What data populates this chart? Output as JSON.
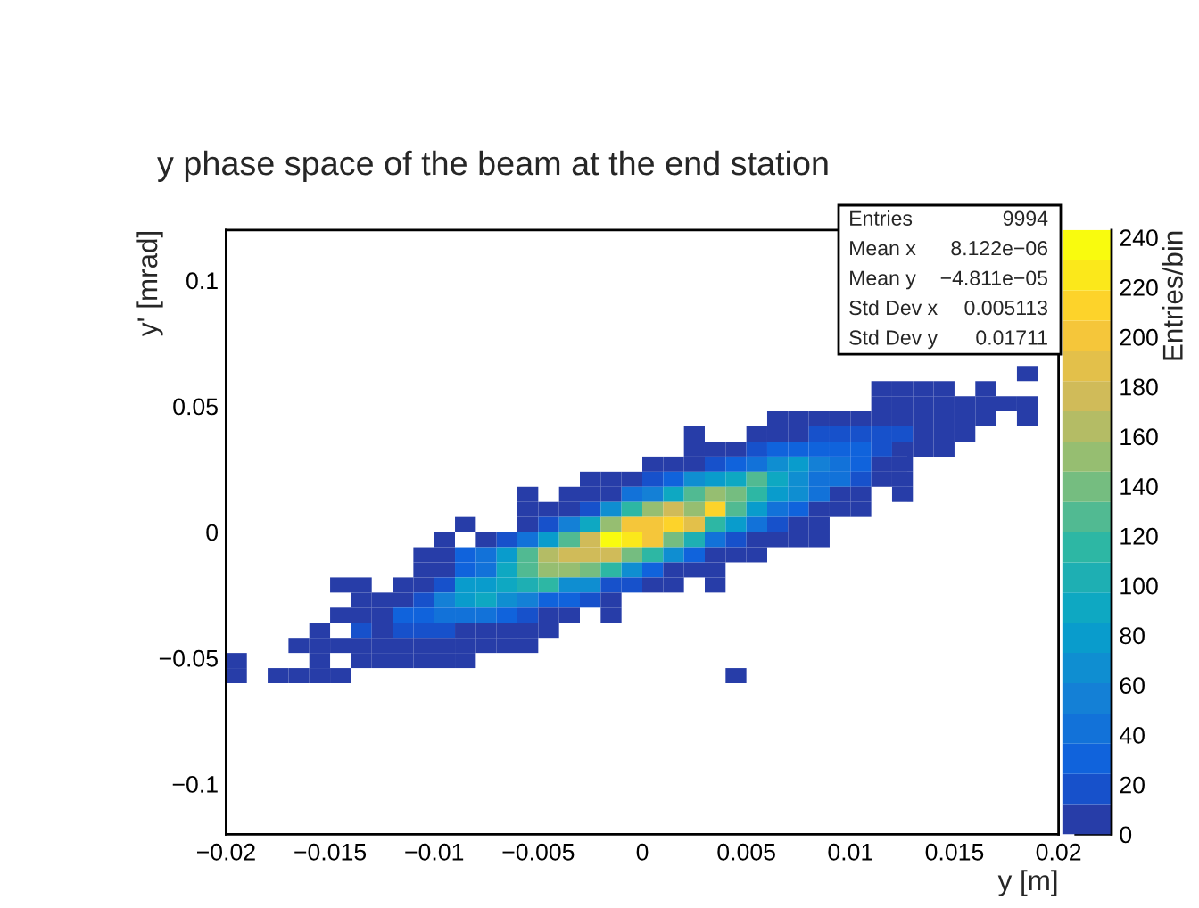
{
  "chart_data": {
    "type": "scatter",
    "marker": "square",
    "title": "y phase space of the beam at the end station",
    "xlabel": "y [m]",
    "ylabel": "y' [mrad]",
    "clabel": "Entries/bin",
    "annotations": [
      "Entries",
      "9994",
      "Mean x",
      "8.122e−06",
      "Mean y",
      "−4.811e−05",
      "Std Dev x",
      "0.005113",
      "Std Dev y",
      "0.01711"
    ],
    "xlim": [
      -0.02,
      0.02
    ],
    "xticks": [
      {
        "value": -0.02,
        "label": "−0.02"
      },
      {
        "value": -0.015,
        "label": "−0.015"
      },
      {
        "value": -0.01,
        "label": "−0.01"
      },
      {
        "value": -0.005,
        "label": "−0.005"
      },
      0,
      0.005,
      0.01,
      0.015,
      0.02
    ],
    "ylim": [
      -0.12,
      0.12
    ],
    "yticks": [
      {
        "value": -0.1,
        "label": "−0.1"
      },
      {
        "value": -0.05,
        "label": "−0.05"
      },
      0,
      0.05,
      0.1
    ],
    "clim": [
      0,
      243
    ],
    "cticks": [
      0,
      20,
      40,
      60,
      80,
      100,
      120,
      140,
      160,
      180,
      200,
      220,
      240
    ],
    "x": [
      0.0185,
      0.0115,
      0.0125,
      0.0135,
      0.0145,
      0.0165,
      0.0115,
      0.0125,
      0.0135,
      0.0145,
      0.0155,
      0.0165,
      0.0175,
      0.0185,
      0.0065,
      0.0075,
      0.0085,
      0.0095,
      0.0105,
      0.0115,
      0.0125,
      0.0135,
      0.0145,
      0.0155,
      0.0165,
      0.0185,
      0.0025,
      0.0055,
      0.0065,
      0.0075,
      0.0085,
      0.0095,
      0.0105,
      0.0115,
      0.0125,
      0.0135,
      0.0145,
      0.0155,
      0.0025,
      0.0035,
      0.0045,
      0.0055,
      0.0065,
      0.0075,
      0.0085,
      0.0095,
      0.0105,
      0.0115,
      0.0125,
      0.0135,
      0.0145,
      0.0005,
      0.0015,
      0.0025,
      0.0035,
      0.0045,
      0.0055,
      0.0065,
      0.0075,
      0.0085,
      0.0095,
      0.0105,
      0.0115,
      0.0125,
      -0.0025,
      -0.0015,
      -0.0005,
      0.0005,
      0.0015,
      0.0025,
      0.0035,
      0.0045,
      0.0055,
      0.0065,
      0.0075,
      0.0085,
      0.0095,
      0.0105,
      0.0115,
      0.0125,
      -0.0055,
      -0.0035,
      -0.0025,
      -0.0015,
      -0.0005,
      0.0005,
      0.0015,
      0.0025,
      0.0035,
      0.0045,
      0.0055,
      0.0065,
      0.0075,
      0.0085,
      0.0095,
      0.0105,
      0.0125,
      -0.0055,
      -0.0045,
      -0.0035,
      -0.0025,
      -0.0015,
      -0.0005,
      0.0005,
      0.0015,
      0.0025,
      0.0035,
      0.0045,
      0.0055,
      0.0065,
      0.0075,
      0.0085,
      0.0095,
      0.0105,
      -0.0085,
      -0.0055,
      -0.0045,
      -0.0035,
      -0.0025,
      -0.0015,
      -0.0005,
      0.0005,
      0.0015,
      0.0025,
      0.0035,
      0.0045,
      0.0055,
      0.0065,
      0.0075,
      0.0085,
      -0.0095,
      -0.0075,
      -0.0065,
      -0.0055,
      -0.0045,
      -0.0035,
      -0.0025,
      -0.0015,
      -0.0005,
      0.0005,
      0.0015,
      0.0025,
      0.0035,
      0.0045,
      0.0055,
      0.0065,
      0.0075,
      0.0085,
      -0.0105,
      -0.0095,
      -0.0085,
      -0.0075,
      -0.0065,
      -0.0055,
      -0.0045,
      -0.0035,
      -0.0025,
      -0.0015,
      -0.0005,
      0.0005,
      0.0015,
      0.0025,
      0.0035,
      0.0045,
      0.0055,
      -0.0105,
      -0.0095,
      -0.0085,
      -0.0075,
      -0.0065,
      -0.0055,
      -0.0045,
      -0.0035,
      -0.0025,
      -0.0015,
      -0.0005,
      0.0005,
      0.0015,
      0.0025,
      0.0035,
      -0.0145,
      -0.0135,
      -0.0115,
      -0.0105,
      -0.0095,
      -0.0085,
      -0.0075,
      -0.0065,
      -0.0055,
      -0.0045,
      -0.0035,
      -0.0025,
      -0.0015,
      -0.0005,
      0.0005,
      0.0015,
      0.0035,
      -0.0135,
      -0.0125,
      -0.0115,
      -0.0105,
      -0.0095,
      -0.0085,
      -0.0075,
      -0.0065,
      -0.0055,
      -0.0045,
      -0.0035,
      -0.0025,
      -0.0015,
      -0.0145,
      -0.0135,
      -0.0125,
      -0.0115,
      -0.0105,
      -0.0095,
      -0.0085,
      -0.0075,
      -0.0065,
      -0.0055,
      -0.0045,
      -0.0035,
      -0.0015,
      -0.0155,
      -0.0135,
      -0.0125,
      -0.0115,
      -0.0105,
      -0.0095,
      -0.0085,
      -0.0075,
      -0.0065,
      -0.0055,
      -0.0045,
      -0.0165,
      -0.0155,
      -0.0145,
      -0.0135,
      -0.0125,
      -0.0115,
      -0.0105,
      -0.0095,
      -0.0085,
      -0.0075,
      -0.0065,
      -0.0055,
      -0.0195,
      -0.0155,
      -0.0135,
      -0.0125,
      -0.0115,
      -0.0105,
      -0.0095,
      -0.0085,
      -0.0195,
      -0.0175,
      -0.0165,
      -0.0155,
      -0.0145,
      0.0045
    ],
    "values": [
      0.063,
      0.057,
      0.057,
      0.057,
      0.057,
      0.057,
      0.051,
      0.051,
      0.051,
      0.051,
      0.051,
      0.051,
      0.051,
      0.051,
      0.045,
      0.045,
      0.045,
      0.045,
      0.045,
      0.045,
      0.045,
      0.045,
      0.045,
      0.045,
      0.045,
      0.045,
      0.039,
      0.039,
      0.039,
      0.039,
      0.039,
      0.039,
      0.039,
      0.039,
      0.039,
      0.039,
      0.039,
      0.039,
      0.033,
      0.033,
      0.033,
      0.033,
      0.033,
      0.033,
      0.033,
      0.033,
      0.033,
      0.033,
      0.033,
      0.033,
      0.033,
      0.027,
      0.027,
      0.027,
      0.027,
      0.027,
      0.027,
      0.027,
      0.027,
      0.027,
      0.027,
      0.027,
      0.027,
      0.027,
      0.021,
      0.021,
      0.021,
      0.021,
      0.021,
      0.021,
      0.021,
      0.021,
      0.021,
      0.021,
      0.021,
      0.021,
      0.021,
      0.021,
      0.021,
      0.021,
      0.015,
      0.015,
      0.015,
      0.015,
      0.015,
      0.015,
      0.015,
      0.015,
      0.015,
      0.015,
      0.015,
      0.015,
      0.015,
      0.015,
      0.015,
      0.015,
      0.015,
      0.009,
      0.009,
      0.009,
      0.009,
      0.009,
      0.009,
      0.009,
      0.009,
      0.009,
      0.009,
      0.009,
      0.009,
      0.009,
      0.009,
      0.009,
      0.009,
      0.009,
      0.003,
      0.003,
      0.003,
      0.003,
      0.003,
      0.003,
      0.003,
      0.003,
      0.003,
      0.003,
      0.003,
      0.003,
      0.003,
      0.003,
      0.003,
      0.003,
      -0.003,
      -0.003,
      -0.003,
      -0.003,
      -0.003,
      -0.003,
      -0.003,
      -0.003,
      -0.003,
      -0.003,
      -0.003,
      -0.003,
      -0.003,
      -0.003,
      -0.003,
      -0.003,
      -0.003,
      -0.003,
      -0.009,
      -0.009,
      -0.009,
      -0.009,
      -0.009,
      -0.009,
      -0.009,
      -0.009,
      -0.009,
      -0.009,
      -0.009,
      -0.009,
      -0.009,
      -0.009,
      -0.009,
      -0.009,
      -0.009,
      -0.015,
      -0.015,
      -0.015,
      -0.015,
      -0.015,
      -0.015,
      -0.015,
      -0.015,
      -0.015,
      -0.015,
      -0.015,
      -0.015,
      -0.015,
      -0.015,
      -0.015,
      -0.021,
      -0.021,
      -0.021,
      -0.021,
      -0.021,
      -0.021,
      -0.021,
      -0.021,
      -0.021,
      -0.021,
      -0.021,
      -0.021,
      -0.021,
      -0.021,
      -0.021,
      -0.021,
      -0.021,
      -0.027,
      -0.027,
      -0.027,
      -0.027,
      -0.027,
      -0.027,
      -0.027,
      -0.027,
      -0.027,
      -0.027,
      -0.027,
      -0.027,
      -0.027,
      -0.033,
      -0.033,
      -0.033,
      -0.033,
      -0.033,
      -0.033,
      -0.033,
      -0.033,
      -0.033,
      -0.033,
      -0.033,
      -0.033,
      -0.033,
      -0.039,
      -0.039,
      -0.039,
      -0.039,
      -0.039,
      -0.039,
      -0.039,
      -0.039,
      -0.039,
      -0.039,
      -0.039,
      -0.045,
      -0.045,
      -0.045,
      -0.045,
      -0.045,
      -0.045,
      -0.045,
      -0.045,
      -0.045,
      -0.045,
      -0.045,
      -0.045,
      -0.051,
      -0.051,
      -0.051,
      -0.051,
      -0.051,
      -0.051,
      -0.051,
      -0.051,
      -0.057,
      -0.057,
      -0.057,
      -0.057,
      -0.057,
      -0.057
    ],
    "cvalues": [
      6,
      6,
      6,
      6,
      6,
      6,
      6,
      6,
      6,
      6,
      6,
      6,
      6,
      6,
      6,
      6,
      6,
      6,
      6,
      6,
      6,
      6,
      6,
      6,
      6,
      6,
      6,
      6,
      6,
      6,
      18,
      18,
      18,
      18,
      18,
      6,
      6,
      6,
      6,
      6,
      6,
      18,
      30,
      30,
      30,
      30,
      30,
      18,
      6,
      6,
      6,
      6,
      6,
      6,
      18,
      30,
      42,
      67,
      79,
      55,
      42,
      30,
      6,
      6,
      6,
      6,
      6,
      18,
      30,
      67,
      79,
      91,
      127,
      91,
      67,
      42,
      42,
      18,
      6,
      6,
      6,
      6,
      6,
      6,
      42,
      55,
      91,
      127,
      152,
      140,
      115,
      79,
      67,
      42,
      6,
      6,
      6,
      6,
      6,
      6,
      18,
      67,
      115,
      152,
      176,
      152,
      212,
      127,
      79,
      42,
      30,
      6,
      6,
      6,
      6,
      6,
      18,
      55,
      91,
      152,
      200,
      200,
      212,
      188,
      115,
      79,
      42,
      18,
      6,
      6,
      6,
      6,
      18,
      42,
      79,
      127,
      176,
      237,
      224,
      200,
      140,
      103,
      42,
      18,
      6,
      6,
      6,
      6,
      6,
      6,
      30,
      42,
      79,
      127,
      164,
      176,
      176,
      176,
      140,
      115,
      67,
      30,
      6,
      6,
      6,
      6,
      6,
      30,
      42,
      91,
      127,
      152,
      152,
      140,
      115,
      67,
      30,
      6,
      6,
      6,
      6,
      6,
      6,
      6,
      18,
      79,
      79,
      91,
      103,
      115,
      67,
      67,
      18,
      18,
      6,
      6,
      6,
      6,
      6,
      6,
      18,
      55,
      79,
      91,
      67,
      55,
      30,
      30,
      18,
      6,
      6,
      6,
      6,
      30,
      30,
      42,
      42,
      42,
      30,
      18,
      6,
      6,
      6,
      6,
      18,
      6,
      18,
      18,
      18,
      6,
      6,
      6,
      6,
      6,
      6,
      6,
      6,
      6,
      6,
      6,
      6,
      6,
      6,
      6,
      6,
      6,
      6,
      6,
      6,
      6,
      6,
      6,
      6,
      6,
      6,
      6,
      6,
      6,
      6,
      6
    ]
  }
}
